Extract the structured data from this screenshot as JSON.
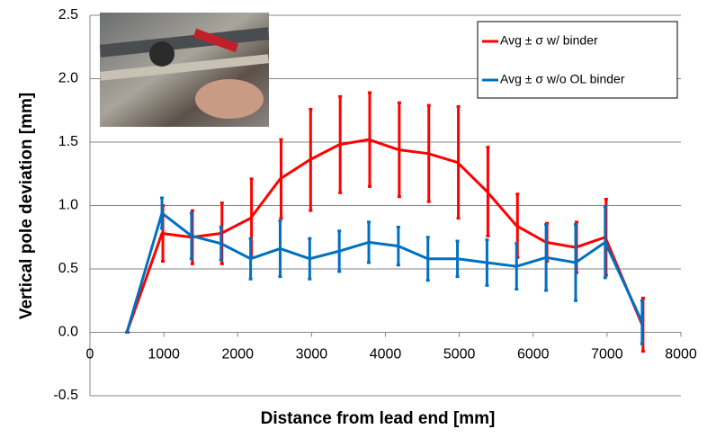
{
  "chart_data": {
    "type": "line",
    "x_label": "Distance from lead end [mm]",
    "y_label": "Vertical pole deviation [mm]",
    "x": [
      500,
      975,
      1375,
      1775,
      2175,
      2575,
      2975,
      3375,
      3775,
      4175,
      4575,
      4975,
      5375,
      5775,
      6175,
      6575,
      6975,
      7475
    ],
    "series": [
      {
        "name": "Avg ± σ w/ binder",
        "color": "#ff0000",
        "values": [
          0.0,
          0.78,
          0.75,
          0.78,
          0.9,
          1.21,
          1.36,
          1.48,
          1.52,
          1.44,
          1.41,
          1.34,
          1.11,
          0.84,
          0.71,
          0.67,
          0.75,
          0.06
        ],
        "errors": [
          0.0,
          0.22,
          0.21,
          0.24,
          0.31,
          0.31,
          0.4,
          0.38,
          0.37,
          0.37,
          0.38,
          0.44,
          0.35,
          0.25,
          0.15,
          0.2,
          0.3,
          0.21
        ]
      },
      {
        "name": "Avg ± σ w/o OL binder",
        "color": "#0070c0",
        "values": [
          0.0,
          0.94,
          0.76,
          0.7,
          0.58,
          0.66,
          0.58,
          0.64,
          0.71,
          0.68,
          0.58,
          0.58,
          0.55,
          0.52,
          0.59,
          0.55,
          0.71,
          0.08
        ],
        "errors": [
          0.0,
          0.12,
          0.18,
          0.13,
          0.16,
          0.22,
          0.16,
          0.16,
          0.16,
          0.15,
          0.17,
          0.14,
          0.18,
          0.18,
          0.26,
          0.3,
          0.28,
          0.17
        ]
      }
    ],
    "xlim": [
      0,
      8000
    ],
    "xticks": [
      0,
      1000,
      2000,
      3000,
      4000,
      5000,
      6000,
      7000,
      8000
    ],
    "ylim": [
      -0.5,
      2.5
    ],
    "yticks": [
      -0.5,
      {
        "value": 0,
        "label": "0.0"
      },
      0.5,
      {
        "value": 1,
        "label": "1.0"
      },
      1.5,
      {
        "value": 2,
        "label": "2.0"
      },
      2.5
    ],
    "grid": true,
    "legend": "top-right"
  }
}
